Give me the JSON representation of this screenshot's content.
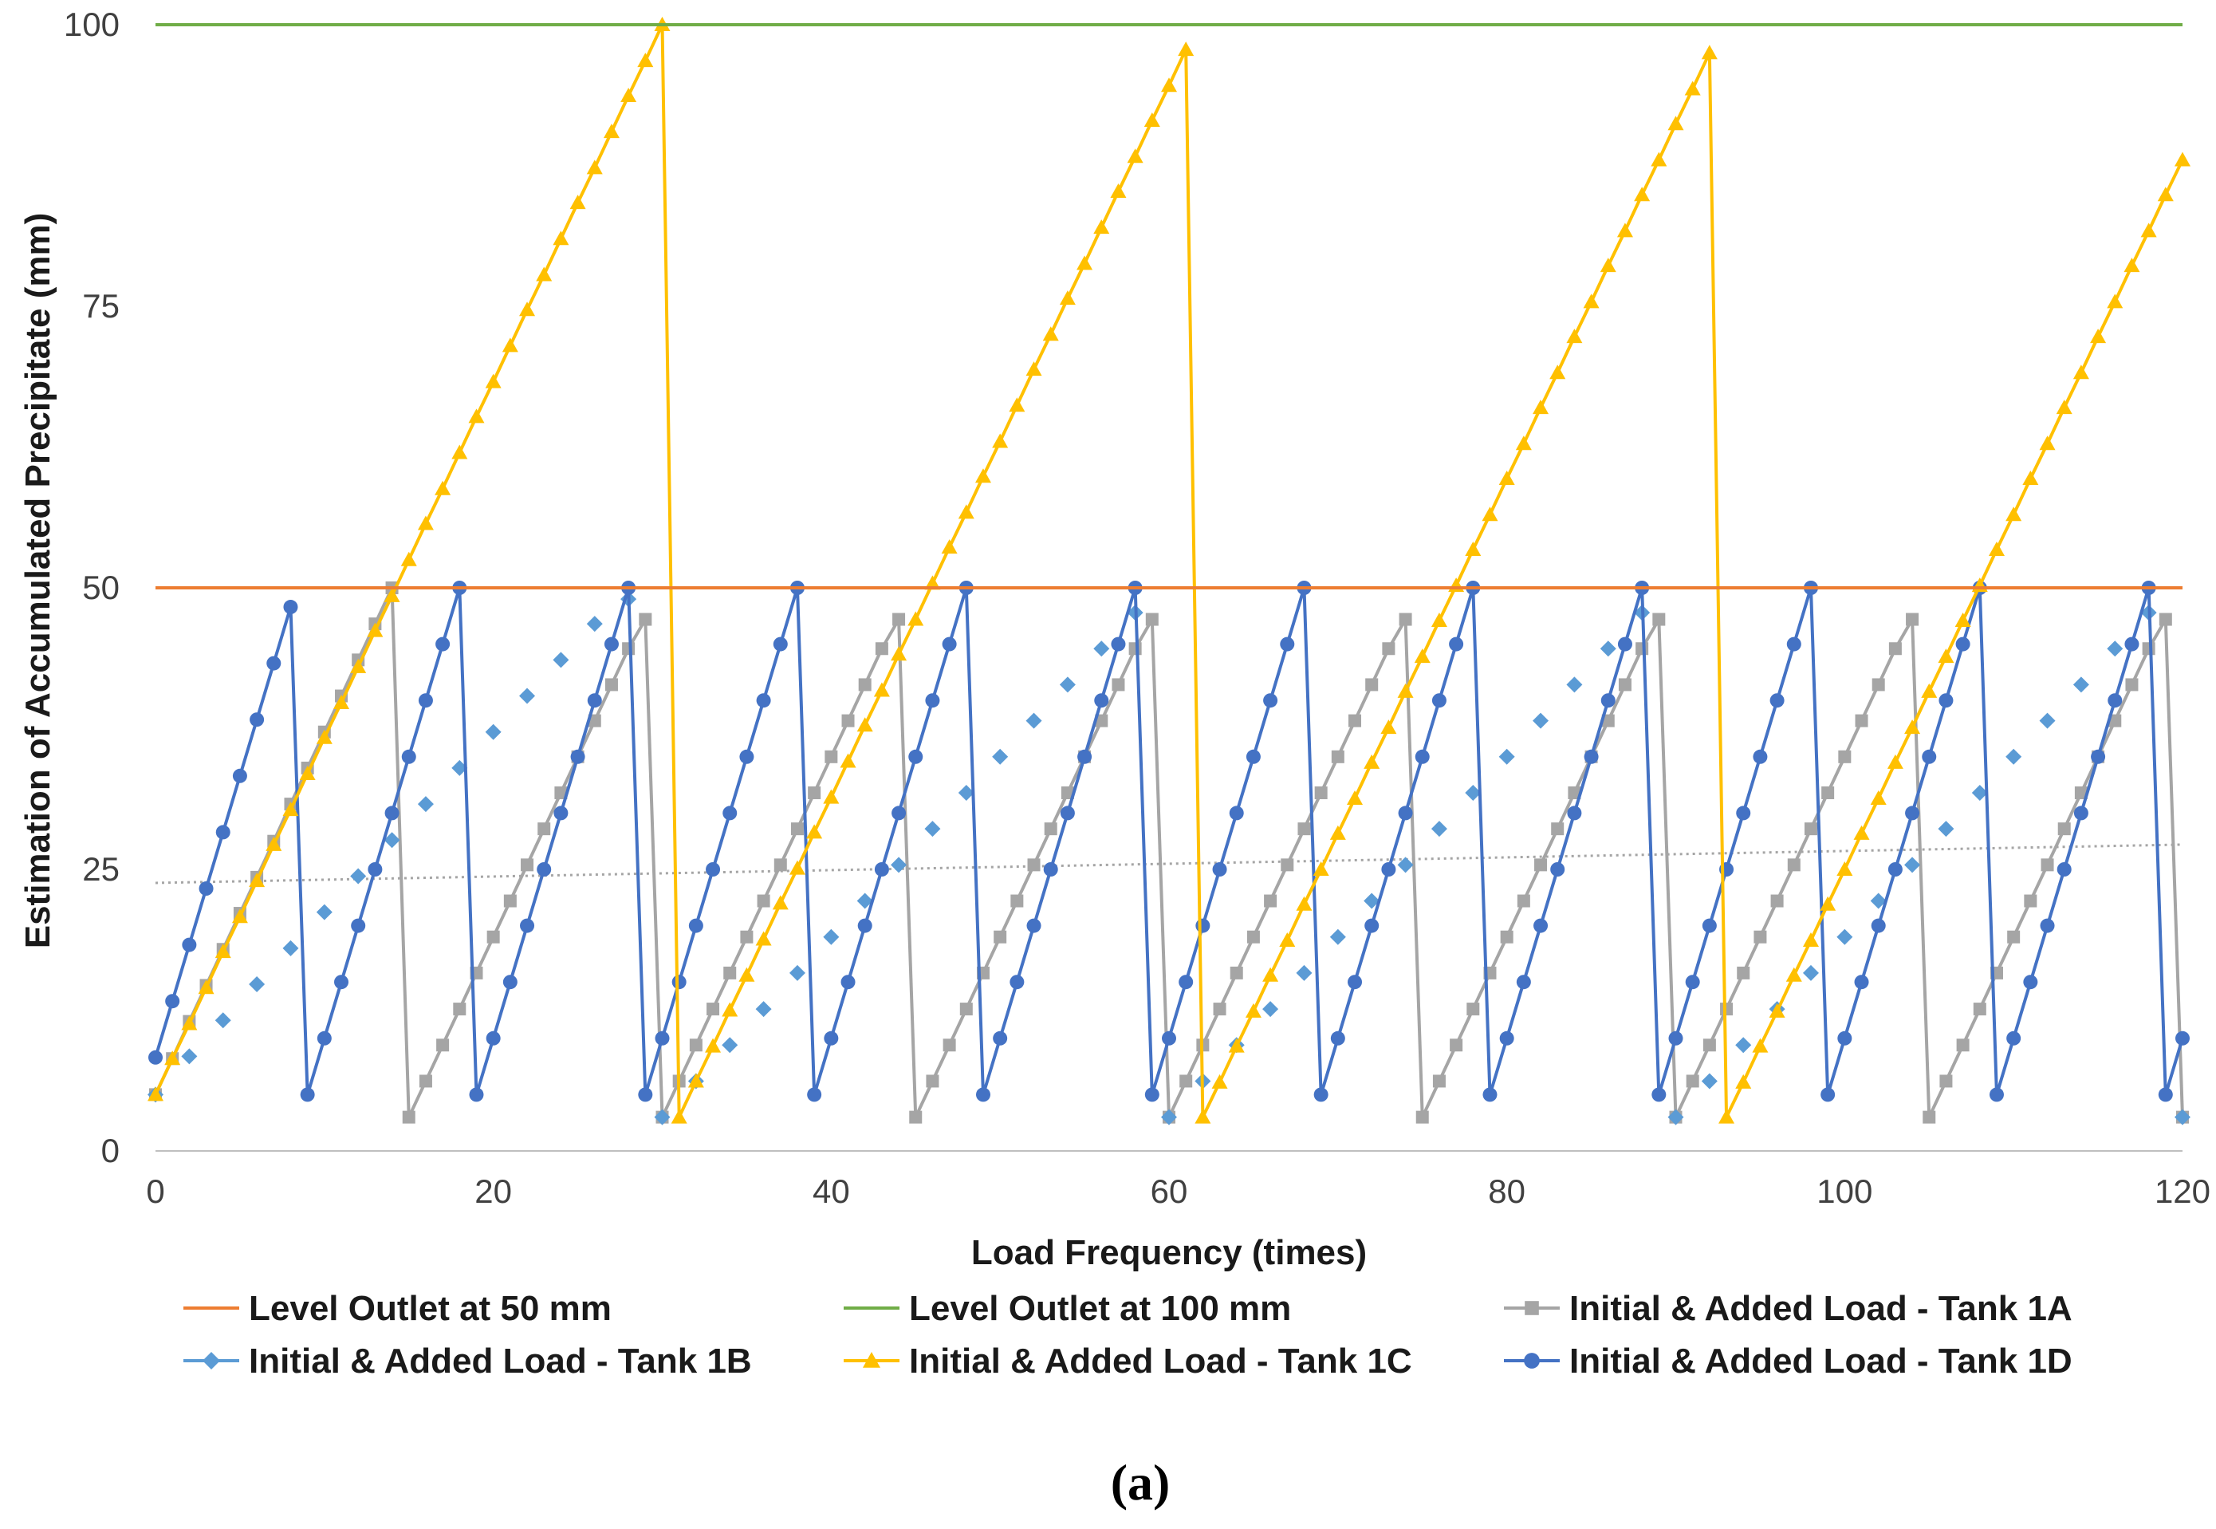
{
  "caption": "(a)",
  "chart_data": {
    "type": "line",
    "xlabel": "Load Frequency (times)",
    "ylabel": "Estimation of Accumulated Precipitate (mm)",
    "xlim": [
      0,
      120
    ],
    "ylim": [
      0,
      100
    ],
    "x_ticks": [
      "0",
      "20",
      "40",
      "60",
      "80",
      "100",
      "120"
    ],
    "y_ticks": [
      "0",
      "25",
      "50",
      "75",
      "100"
    ],
    "grid": false,
    "legend_position": "bottom",
    "series": [
      {
        "name": "Level Outlet at 50 mm",
        "color": "#ED7D31",
        "marker": "none",
        "line": true,
        "x": [
          0,
          120
        ],
        "y": [
          50,
          50
        ]
      },
      {
        "name": "Level Outlet at 100 mm",
        "color": "#70AD47",
        "marker": "none",
        "line": true,
        "x": [
          0,
          120
        ],
        "y": [
          100,
          100
        ]
      },
      {
        "name": "Initial & Added Load - Tank 1A",
        "color": "#A5A5A5",
        "marker": "square",
        "line": true,
        "x": [
          0,
          1,
          2,
          3,
          4,
          5,
          6,
          7,
          8,
          9,
          10,
          11,
          12,
          13,
          14,
          15,
          16,
          17,
          18,
          19,
          20,
          21,
          22,
          23,
          24,
          25,
          26,
          27,
          28,
          29,
          30,
          31,
          32,
          33,
          34,
          35,
          36,
          37,
          38,
          39,
          40,
          41,
          42,
          43,
          44,
          45,
          46,
          47,
          48,
          49,
          50,
          51,
          52,
          53,
          54,
          55,
          56,
          57,
          58,
          59,
          60,
          61,
          62,
          63,
          64,
          65,
          66,
          67,
          68,
          69,
          70,
          71,
          72,
          73,
          74,
          75,
          76,
          77,
          78,
          79,
          80,
          81,
          82,
          83,
          84,
          85,
          86,
          87,
          88,
          89,
          90,
          91,
          92,
          93,
          94,
          95,
          96,
          97,
          98,
          99,
          100,
          101,
          102,
          103,
          104,
          105,
          106,
          107,
          108,
          109,
          110,
          111,
          112,
          113,
          114,
          115,
          116,
          117,
          118,
          119,
          120
        ],
        "y": [
          5,
          8.2,
          11.5,
          14.7,
          17.9,
          21.1,
          24.3,
          27.5,
          30.8,
          34,
          37.2,
          40.4,
          43.6,
          46.8,
          50,
          3,
          6.2,
          9.4,
          12.6,
          15.8,
          19,
          22.2,
          25.4,
          28.6,
          31.8,
          35,
          38.2,
          41.4,
          44.6,
          47.2,
          3,
          6.2,
          9.4,
          12.6,
          15.8,
          19,
          22.2,
          25.4,
          28.6,
          31.8,
          35,
          38.2,
          41.4,
          44.6,
          47.2,
          3,
          6.2,
          9.4,
          12.6,
          15.8,
          19,
          22.2,
          25.4,
          28.6,
          31.8,
          35,
          38.2,
          41.4,
          44.6,
          47.2,
          3,
          6.2,
          9.4,
          12.6,
          15.8,
          19,
          22.2,
          25.4,
          28.6,
          31.8,
          35,
          38.2,
          41.4,
          44.6,
          47.2,
          3,
          6.2,
          9.4,
          12.6,
          15.8,
          19,
          22.2,
          25.4,
          28.6,
          31.8,
          35,
          38.2,
          41.4,
          44.6,
          47.2,
          3,
          6.2,
          9.4,
          12.6,
          15.8,
          19,
          22.2,
          25.4,
          28.6,
          31.8,
          35,
          38.2,
          41.4,
          44.6,
          47.2,
          3,
          6.2,
          9.4,
          12.6,
          15.8,
          19,
          22.2,
          25.4,
          28.6,
          31.8,
          35,
          38.2,
          41.4,
          44.6,
          47.2,
          3
        ]
      },
      {
        "name": "Initial & Added Load - Tank 1B",
        "color": "#5B9BD5",
        "marker": "diamond",
        "line": false,
        "x": [
          0,
          2,
          4,
          6,
          8,
          10,
          12,
          14,
          16,
          18,
          20,
          22,
          24,
          26,
          28,
          30,
          32,
          34,
          36,
          38,
          40,
          42,
          44,
          46,
          48,
          50,
          52,
          54,
          56,
          58,
          60,
          62,
          64,
          66,
          68,
          70,
          72,
          74,
          76,
          78,
          80,
          82,
          84,
          86,
          88,
          90,
          92,
          94,
          96,
          98,
          100,
          102,
          104,
          106,
          108,
          110,
          112,
          114,
          116,
          118,
          120
        ],
        "y": [
          5,
          8.4,
          11.6,
          14.8,
          18,
          21.2,
          24.4,
          27.6,
          30.8,
          34,
          37.2,
          40.4,
          43.6,
          46.8,
          49,
          3,
          6.2,
          9.4,
          12.6,
          15.8,
          19,
          22.2,
          25.4,
          28.6,
          31.8,
          35,
          38.2,
          41.4,
          44.6,
          47.8,
          3,
          6.2,
          9.4,
          12.6,
          15.8,
          19,
          22.2,
          25.4,
          28.6,
          31.8,
          35,
          38.2,
          41.4,
          44.6,
          47.8,
          3,
          6.2,
          9.4,
          12.6,
          15.8,
          19,
          22.2,
          25.4,
          28.6,
          31.8,
          35,
          38.2,
          41.4,
          44.6,
          47.8,
          3
        ]
      },
      {
        "name": "Initial & Added Load - Tank 1C",
        "color": "#FFC000",
        "marker": "triangle",
        "line": true,
        "x": [
          0,
          1,
          2,
          3,
          4,
          5,
          6,
          7,
          8,
          9,
          10,
          11,
          12,
          13,
          14,
          15,
          16,
          17,
          18,
          19,
          20,
          21,
          22,
          23,
          24,
          25,
          26,
          27,
          28,
          29,
          30,
          31,
          32,
          33,
          34,
          35,
          36,
          37,
          38,
          39,
          40,
          41,
          42,
          43,
          44,
          45,
          46,
          47,
          48,
          49,
          50,
          51,
          52,
          53,
          54,
          55,
          56,
          57,
          58,
          59,
          60,
          61,
          62,
          63,
          64,
          65,
          66,
          67,
          68,
          69,
          70,
          71,
          72,
          73,
          74,
          75,
          76,
          77,
          78,
          79,
          80,
          81,
          82,
          83,
          84,
          85,
          86,
          87,
          88,
          89,
          90,
          91,
          92,
          93,
          94,
          95,
          96,
          97,
          98,
          99,
          100,
          101,
          102,
          103,
          104,
          105,
          106,
          107,
          108,
          109,
          110,
          111,
          112,
          113,
          114,
          115,
          116,
          117,
          118,
          119,
          120
        ],
        "y": [
          5,
          8.2,
          11.3,
          14.5,
          17.7,
          20.8,
          24,
          27.2,
          30.3,
          33.5,
          36.7,
          39.8,
          43,
          46.2,
          49.3,
          52.5,
          55.7,
          58.8,
          62,
          65.2,
          68.3,
          71.5,
          74.7,
          77.8,
          81,
          84.2,
          87.3,
          90.5,
          93.7,
          96.8,
          100,
          3,
          6.2,
          9.3,
          12.5,
          15.6,
          18.8,
          22,
          25.1,
          28.3,
          31.4,
          34.6,
          37.8,
          40.9,
          44.1,
          47.2,
          50.4,
          53.6,
          56.7,
          59.9,
          63,
          66.2,
          69.4,
          72.5,
          75.7,
          78.8,
          82,
          85.2,
          88.3,
          91.5,
          94.6,
          97.8,
          3,
          6.1,
          9.3,
          12.4,
          15.6,
          18.7,
          21.9,
          25,
          28.2,
          31.3,
          34.5,
          37.6,
          40.8,
          43.9,
          47.1,
          50.2,
          53.4,
          56.5,
          59.7,
          62.8,
          66,
          69.1,
          72.3,
          75.4,
          78.6,
          81.7,
          84.9,
          88,
          91.2,
          94.3,
          97.5,
          3,
          6.1,
          9.3,
          12.4,
          15.6,
          18.7,
          21.9,
          25,
          28.2,
          31.3,
          34.5,
          37.6,
          40.8,
          43.9,
          47.1,
          50.2,
          53.4,
          56.5,
          59.7,
          62.8,
          66,
          69.1,
          72.3,
          75.4,
          78.6,
          81.7,
          84.9,
          88
        ]
      },
      {
        "name": "Initial & Added Load - Tank 1D",
        "color": "#4472C4",
        "marker": "circle",
        "line": true,
        "x": [
          0,
          1,
          2,
          3,
          4,
          5,
          6,
          7,
          8,
          9,
          10,
          11,
          12,
          13,
          14,
          15,
          16,
          17,
          18,
          19,
          20,
          21,
          22,
          23,
          24,
          25,
          26,
          27,
          28,
          29,
          30,
          31,
          32,
          33,
          34,
          35,
          36,
          37,
          38,
          39,
          40,
          41,
          42,
          43,
          44,
          45,
          46,
          47,
          48,
          49,
          50,
          51,
          52,
          53,
          54,
          55,
          56,
          57,
          58,
          59,
          60,
          61,
          62,
          63,
          64,
          65,
          66,
          67,
          68,
          69,
          70,
          71,
          72,
          73,
          74,
          75,
          76,
          77,
          78,
          79,
          80,
          81,
          82,
          83,
          84,
          85,
          86,
          87,
          88,
          89,
          90,
          91,
          92,
          93,
          94,
          95,
          96,
          97,
          98,
          99,
          100,
          101,
          102,
          103,
          104,
          105,
          106,
          107,
          108,
          109,
          110,
          111,
          112,
          113,
          114,
          115,
          116,
          117,
          118,
          119,
          120
        ],
        "y": [
          8.3,
          13.3,
          18.3,
          23.3,
          28.3,
          33.3,
          38.3,
          43.3,
          48.3,
          5,
          10,
          15,
          20,
          25,
          30,
          35,
          40,
          45,
          50,
          5,
          10,
          15,
          20,
          25,
          30,
          35,
          40,
          45,
          50,
          5,
          10,
          15,
          20,
          25,
          30,
          35,
          40,
          45,
          50,
          5,
          10,
          15,
          20,
          25,
          30,
          35,
          40,
          45,
          50,
          5,
          10,
          15,
          20,
          25,
          30,
          35,
          40,
          45,
          50,
          5,
          10,
          15,
          20,
          25,
          30,
          35,
          40,
          45,
          50,
          5,
          10,
          15,
          20,
          25,
          30,
          35,
          40,
          45,
          50,
          5,
          10,
          15,
          20,
          25,
          30,
          35,
          40,
          45,
          50,
          5,
          10,
          15,
          20,
          25,
          30,
          35,
          40,
          45,
          50,
          5,
          10,
          15,
          20,
          25,
          30,
          35,
          40,
          45,
          50,
          5,
          10,
          15,
          20,
          25,
          30,
          35,
          40,
          45,
          50,
          5,
          10
        ]
      }
    ],
    "trendline": {
      "name": "Tank 1B trendline",
      "color": "#A5A5A5",
      "style": "dotted",
      "x": [
        0,
        120
      ],
      "y": [
        23.8,
        27.2
      ]
    }
  }
}
